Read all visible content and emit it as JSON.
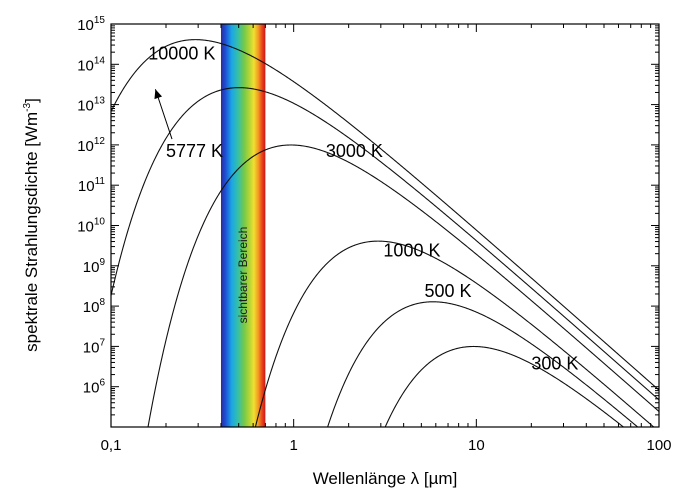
{
  "chart_data": {
    "type": "line",
    "xlabel": "Wellenlänge  λ [µm]",
    "ylabel": "spektrale Strahlungsdichte [Wm",
    "ylabel_exp": "-3",
    "ylabel_end": "]",
    "x_scale": "log",
    "y_scale": "log",
    "xlim": [
      0.1,
      100
    ],
    "ylim": [
      100000,
      1000000000000000.0
    ],
    "x_ticks": [
      {
        "value": 0.1,
        "label": "0,1"
      },
      {
        "value": 1,
        "label": "1"
      },
      {
        "value": 10,
        "label": "10"
      },
      {
        "value": 100,
        "label": "100"
      }
    ],
    "y_ticks": [
      {
        "value": 1000000.0,
        "base": "10",
        "exp": "6"
      },
      {
        "value": 10000000.0,
        "base": "10",
        "exp": "7"
      },
      {
        "value": 100000000.0,
        "base": "10",
        "exp": "8"
      },
      {
        "value": 1000000000.0,
        "base": "10",
        "exp": "9"
      },
      {
        "value": 10000000000.0,
        "base": "10",
        "exp": "10"
      },
      {
        "value": 100000000000.0,
        "base": "10",
        "exp": "11"
      },
      {
        "value": 1000000000000.0,
        "base": "10",
        "exp": "12"
      },
      {
        "value": 10000000000000.0,
        "base": "10",
        "exp": "13"
      },
      {
        "value": 100000000000000.0,
        "base": "10",
        "exp": "14"
      },
      {
        "value": 1000000000000000.0,
        "base": "10",
        "exp": "15"
      }
    ],
    "series": [
      {
        "temperature": 10000,
        "label": "10000 K",
        "label_at": [
          0.16,
          130000000000000.0
        ]
      },
      {
        "temperature": 5777,
        "label": "5777 K",
        "label_at": [
          0.2,
          500000000000.0
        ],
        "arrow_to": [
          0.175,
          24000000000000.0
        ]
      },
      {
        "temperature": 3000,
        "label": "3000 K",
        "label_at": [
          1.5,
          500000000000.0
        ]
      },
      {
        "temperature": 1000,
        "label": "1000 K",
        "label_at": [
          3.1,
          1700000000.0
        ]
      },
      {
        "temperature": 500,
        "label": "500 K",
        "label_at": [
          5.2,
          170000000.0
        ]
      },
      {
        "temperature": 300,
        "label": "300 K",
        "label_at": [
          20,
          2700000.0
        ]
      }
    ],
    "visible_band": {
      "label": "sichtbarer Bereich",
      "from": 0.4,
      "to": 0.7
    },
    "grid": false,
    "legend": "none"
  }
}
